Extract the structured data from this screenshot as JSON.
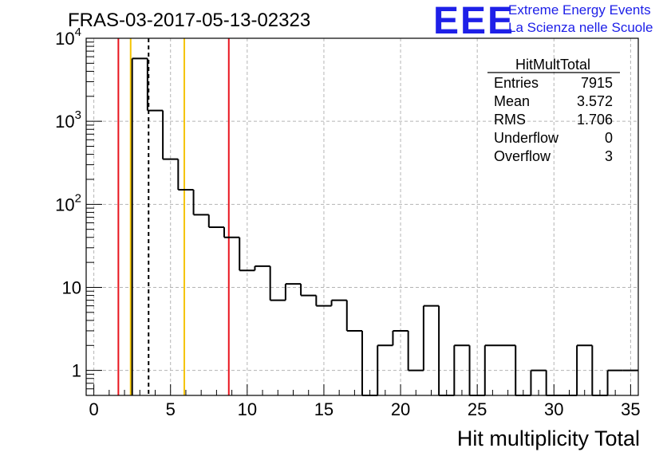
{
  "title": "FRAS-03-2017-05-13-02323",
  "logo": {
    "mark": "EEE",
    "line1": "Extreme Energy Events",
    "line2": "La Scienza nelle Scuole",
    "color": "#1e20e8"
  },
  "stats": {
    "name": "HitMultTotal",
    "rows": [
      {
        "label": "Entries",
        "value": "7915"
      },
      {
        "label": "Mean",
        "value": "3.572"
      },
      {
        "label": "RMS",
        "value": "1.706"
      },
      {
        "label": "Underflow",
        "value": "0"
      },
      {
        "label": "Overflow",
        "value": "3"
      }
    ]
  },
  "chart_data": {
    "type": "histogram",
    "title": "FRAS-03-2017-05-13-02323",
    "xlabel": "Hit multiplicity Total",
    "ylabel": "",
    "xlim": [
      -0.5,
      35.5
    ],
    "ylim": [
      0.5,
      10000
    ],
    "yscale": "log",
    "grid": true,
    "x_ticks": [
      "0",
      "5",
      "10",
      "15",
      "20",
      "25",
      "30",
      "35"
    ],
    "y_ticks": [
      "1",
      "10",
      "10^2",
      "10^3",
      "10^4"
    ],
    "bin_width": 1,
    "bins": [
      {
        "x": 3,
        "y": 5700
      },
      {
        "x": 4,
        "y": 1350
      },
      {
        "x": 5,
        "y": 350
      },
      {
        "x": 6,
        "y": 150
      },
      {
        "x": 7,
        "y": 75
      },
      {
        "x": 8,
        "y": 53
      },
      {
        "x": 9,
        "y": 40
      },
      {
        "x": 10,
        "y": 16
      },
      {
        "x": 11,
        "y": 18
      },
      {
        "x": 12,
        "y": 7
      },
      {
        "x": 13,
        "y": 11
      },
      {
        "x": 14,
        "y": 8
      },
      {
        "x": 15,
        "y": 6
      },
      {
        "x": 16,
        "y": 7
      },
      {
        "x": 17,
        "y": 3
      },
      {
        "x": 18,
        "y": 0
      },
      {
        "x": 19,
        "y": 2
      },
      {
        "x": 20,
        "y": 3
      },
      {
        "x": 21,
        "y": 1
      },
      {
        "x": 22,
        "y": 6
      },
      {
        "x": 23,
        "y": 0
      },
      {
        "x": 24,
        "y": 2
      },
      {
        "x": 25,
        "y": 0
      },
      {
        "x": 26,
        "y": 2
      },
      {
        "x": 27,
        "y": 2
      },
      {
        "x": 28,
        "y": 0
      },
      {
        "x": 29,
        "y": 1
      },
      {
        "x": 30,
        "y": 0
      },
      {
        "x": 31,
        "y": 0
      },
      {
        "x": 32,
        "y": 2
      },
      {
        "x": 33,
        "y": 0
      },
      {
        "x": 34,
        "y": 1
      },
      {
        "x": 35,
        "y": 1
      }
    ],
    "vertical_lines": [
      {
        "x": 1.6,
        "color": "#e8141e",
        "style": "solid"
      },
      {
        "x": 2.4,
        "color": "#f5c400",
        "style": "solid"
      },
      {
        "x": 3.57,
        "color": "#000000",
        "style": "dashed"
      },
      {
        "x": 5.9,
        "color": "#f5c400",
        "style": "solid"
      },
      {
        "x": 8.8,
        "color": "#e8141e",
        "style": "solid"
      }
    ],
    "line_color": "#000000"
  }
}
